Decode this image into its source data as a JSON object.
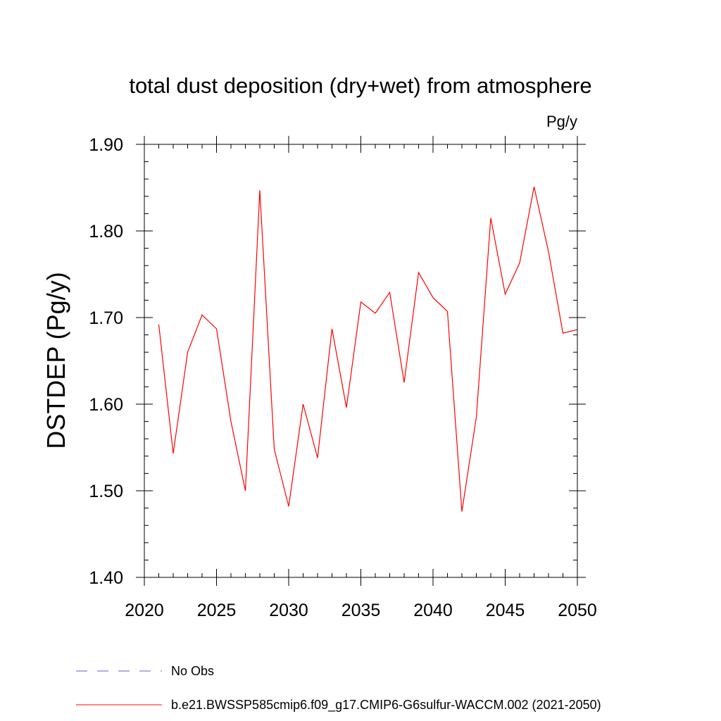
{
  "chart_data": {
    "type": "line",
    "title": "total dust deposition (dry+wet) from atmosphere",
    "units_label": "Pg/y",
    "ylabel": "DSTDEP  (Pg/y)",
    "xlabel": "",
    "xlim": [
      2020,
      2050
    ],
    "ylim": [
      1.4,
      1.9
    ],
    "x_ticks": [
      2020,
      2025,
      2030,
      2035,
      2040,
      2045,
      2050
    ],
    "x_tick_labels": [
      "2020",
      "2025",
      "2030",
      "2035",
      "2040",
      "2045",
      "2050"
    ],
    "y_ticks": [
      1.4,
      1.5,
      1.6,
      1.7,
      1.8,
      1.9
    ],
    "y_tick_labels": [
      "1.40",
      "1.50",
      "1.60",
      "1.70",
      "1.80",
      "1.90"
    ],
    "grid": false,
    "legend_position": "bottom",
    "series": [
      {
        "name": "b.e21.BWSSP585cmip6.f09_g17.CMIP6-G6sulfur-WACCM.002 (2021-2050)",
        "color": "#ff0000",
        "style": "solid",
        "x": [
          2021,
          2022,
          2023,
          2024,
          2025,
          2026,
          2027,
          2028,
          2029,
          2030,
          2031,
          2032,
          2033,
          2034,
          2035,
          2036,
          2037,
          2038,
          2039,
          2040,
          2041,
          2042,
          2043,
          2044,
          2045,
          2046,
          2047,
          2048,
          2049,
          2050
        ],
        "values": [
          1.692,
          1.543,
          1.66,
          1.703,
          1.687,
          1.58,
          1.5,
          1.847,
          1.548,
          1.482,
          1.6,
          1.538,
          1.687,
          1.596,
          1.718,
          1.705,
          1.729,
          1.625,
          1.752,
          1.723,
          1.707,
          1.476,
          1.585,
          1.815,
          1.727,
          1.763,
          1.851,
          1.776,
          1.682,
          1.686
        ]
      }
    ],
    "legend": [
      {
        "label": "No Obs",
        "color": "#6a5acd",
        "style": "dashed"
      },
      {
        "label": "b.e21.BWSSP585cmip6.f09_g17.CMIP6-G6sulfur-WACCM.002 (2021-2050)",
        "color": "#ff0000",
        "style": "solid"
      }
    ]
  }
}
